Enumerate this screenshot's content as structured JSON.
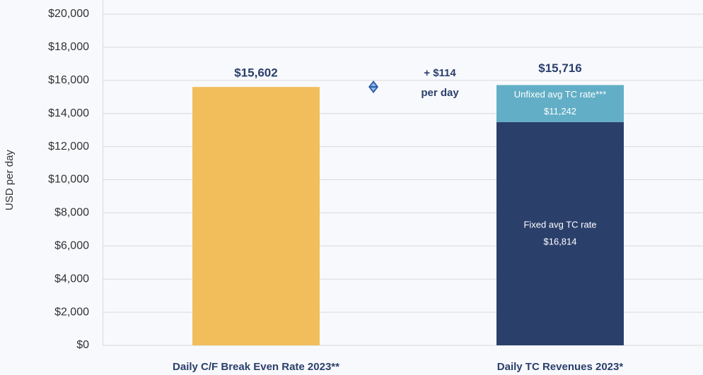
{
  "chart_data": {
    "type": "bar",
    "stacked": true,
    "categories": [
      "Daily C/F Break Even Rate 2023**",
      "Daily TC Revenues 2023*"
    ],
    "series": [
      {
        "color": "#F2BE5C",
        "values": [
          15602,
          null
        ],
        "value_labels": [
          "$15,602",
          null
        ]
      },
      {
        "name": "Fixed avg TC rate",
        "rate_label": "$16,814",
        "color": "#2B3F6B",
        "values": [
          null,
          13480
        ]
      },
      {
        "name": "Unfixed avg TC rate***",
        "rate_label": "$11,242",
        "color": "#62AEC6",
        "values": [
          null,
          2236
        ]
      }
    ],
    "total_labels": [
      null,
      "$15,716"
    ],
    "annotation": [
      "+ $114",
      "per day"
    ],
    "ylabel": "USD per day",
    "ylim": [
      0,
      20000
    ],
    "yticks": [
      {
        "value": 0,
        "label": "$0"
      },
      {
        "value": 2000,
        "label": "$2,000"
      },
      {
        "value": 4000,
        "label": "$4,000"
      },
      {
        "value": 6000,
        "label": "$6,000"
      },
      {
        "value": 8000,
        "label": "$8,000"
      },
      {
        "value": 10000,
        "label": "$10,000"
      },
      {
        "value": 12000,
        "label": "$12,000"
      },
      {
        "value": 14000,
        "label": "$14,000"
      },
      {
        "value": 16000,
        "label": "$16,000"
      },
      {
        "value": 18000,
        "label": "$18,000"
      },
      {
        "value": 20000,
        "label": "$20,000"
      }
    ],
    "grid": true
  }
}
